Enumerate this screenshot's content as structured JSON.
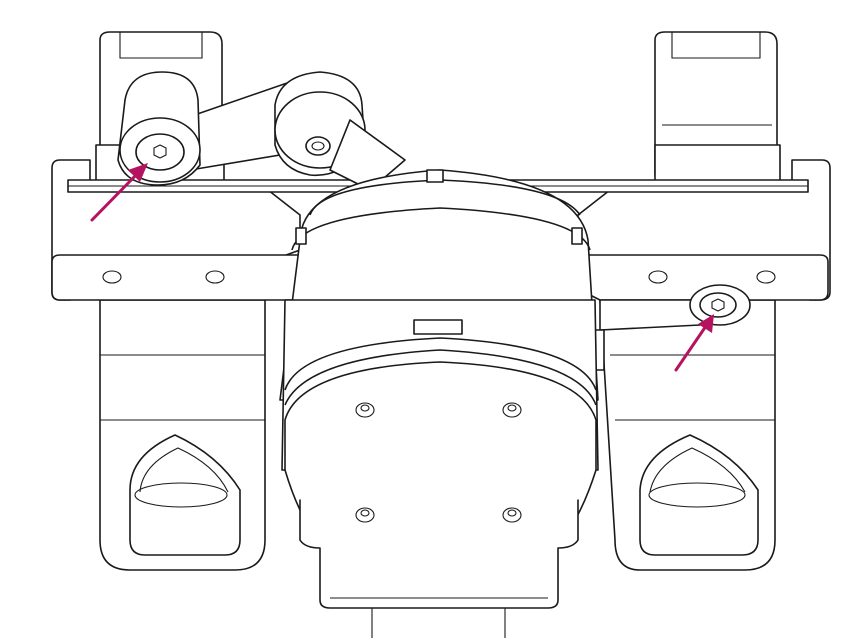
{
  "figure": {
    "subject": "gimbal-mount-line-drawing",
    "callouts": [
      {
        "name": "left-screw-callout",
        "icon": "arrow-icon",
        "color": "#b5135f",
        "points_to": "left-hex-screw"
      },
      {
        "name": "right-screw-callout",
        "icon": "arrow-icon",
        "color": "#b5135f",
        "points_to": "right-hex-screw"
      }
    ],
    "colors": {
      "line": "#1a1a1a",
      "background": "#ffffff",
      "accent": "#b5135f"
    }
  }
}
